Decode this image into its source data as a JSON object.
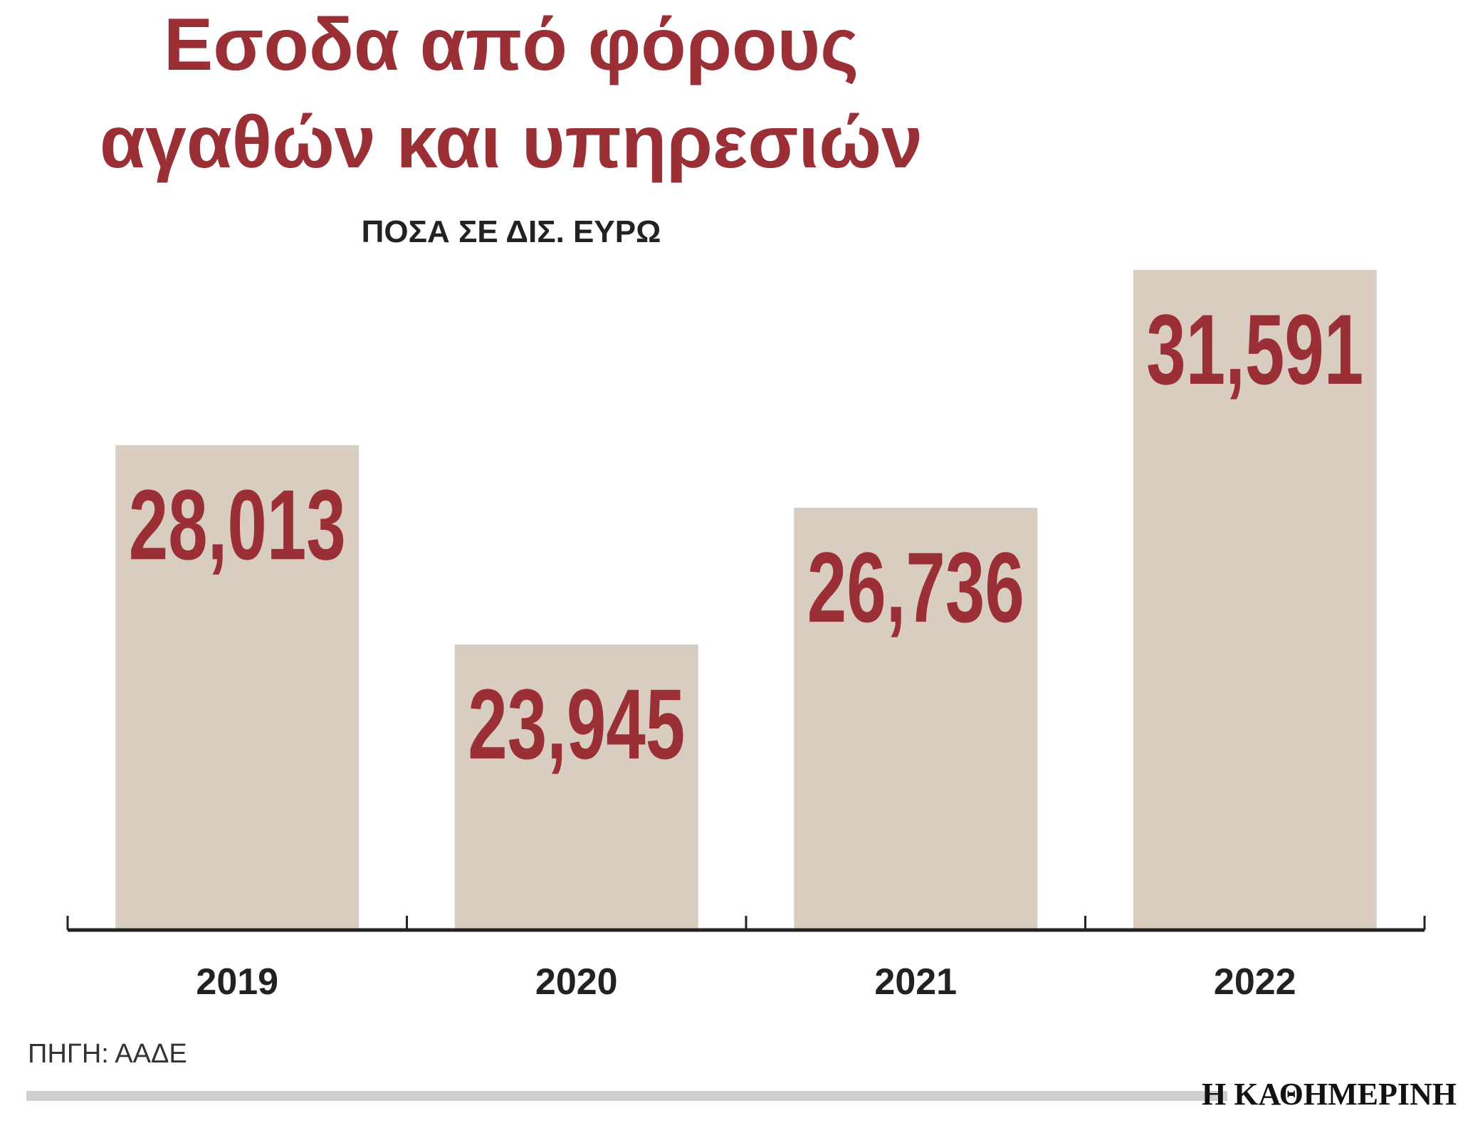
{
  "chart_data": {
    "type": "bar",
    "title": [
      "Εσοδα από φόρους",
      "αγαθών και υπηρεσιών"
    ],
    "subtitle": "ΠΟΣΑ ΣΕ ΔΙΣ. ΕΥΡΩ",
    "categories": [
      "2019",
      "2020",
      "2021",
      "2022"
    ],
    "values": [
      28.013,
      23.945,
      26.736,
      31.591
    ],
    "value_labels": [
      "28,013",
      "23,945",
      "26,736",
      "31,591"
    ],
    "color": "#d9cdc1",
    "label_color": "#9a2f36",
    "source": "ΠΗΓΗ: ΑΑΔΕ",
    "publisher": "Η ΚΑΘΗΜΕΡΙΝΗ"
  }
}
